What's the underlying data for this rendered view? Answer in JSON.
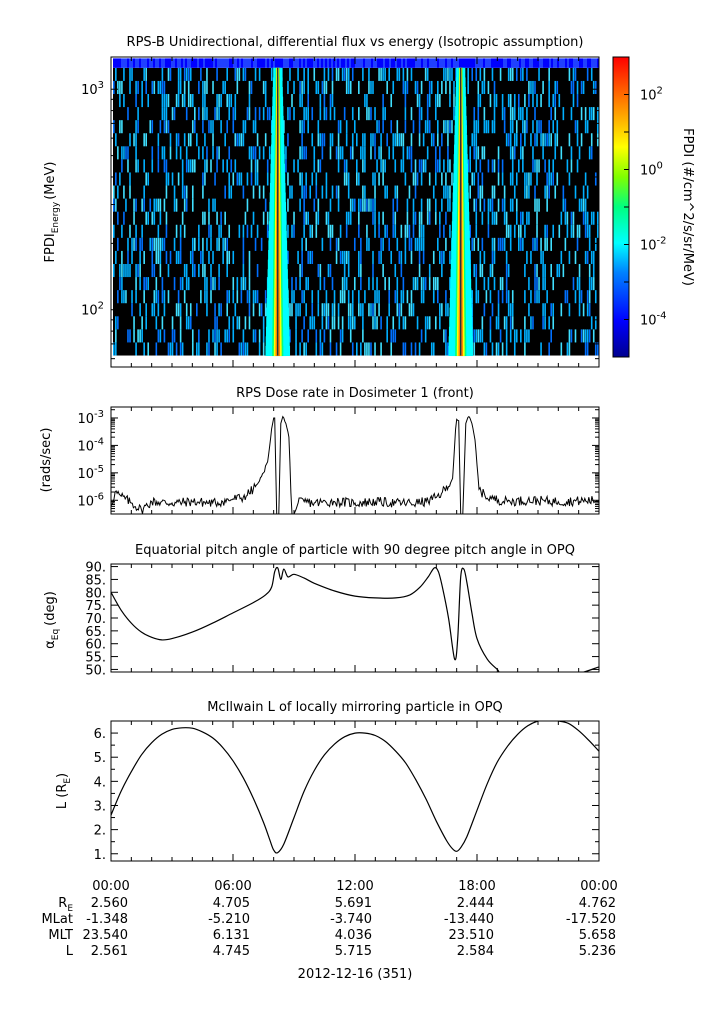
{
  "chart_data": [
    {
      "type": "heatmap",
      "title": "RPS-B  Unidirectional, differential flux vs energy (Isotropic assumption)",
      "ylabel": "FPDI",
      "ylabel_sub": "Energy",
      "ylabel_unit": "(MeV)",
      "yscale": "log",
      "ylim": [
        55,
        1400
      ],
      "yticks": [
        {
          "base": "10",
          "exp": "3",
          "value": 1000
        },
        {
          "base": "10",
          "exp": "2",
          "value": 100
        }
      ],
      "x_hours": [
        0,
        24
      ],
      "bright_bands_hours": [
        8.2,
        17.2
      ],
      "colorbar": {
        "label": "FPDI (#/cm^2/s/sr/MeV)",
        "scale": "log",
        "range_exp": [
          -5,
          3
        ],
        "ticks": [
          {
            "base": "10",
            "exp": "2",
            "value": 2
          },
          {
            "base": "10",
            "exp": "0",
            "value": 0
          },
          {
            "base": "10",
            "exp": "-2",
            "value": -2
          },
          {
            "base": "10",
            "exp": "-4",
            "value": -4
          }
        ],
        "colors": [
          "#00008f",
          "#0000ff",
          "#0080ff",
          "#00ffff",
          "#00ff80",
          "#80ff00",
          "#ffff00",
          "#ff8000",
          "#ff0000"
        ]
      }
    },
    {
      "type": "line",
      "title": "RPS  Dose rate in Dosimeter 1 (front)",
      "ylabel": "(rads/sec)",
      "yscale": "log",
      "ylim_exp": [
        -6.5,
        -2.6
      ],
      "yticks": [
        {
          "base": "10",
          "exp": "-3",
          "value": -3
        },
        {
          "base": "10",
          "exp": "-4",
          "value": -4
        },
        {
          "base": "10",
          "exp": "-5",
          "value": -5
        },
        {
          "base": "10",
          "exp": "-6",
          "value": -6
        }
      ],
      "series": [
        {
          "x": [
            0,
            0.2,
            0.5,
            1.0,
            1.5,
            2.0,
            3.0,
            4.0,
            5.0,
            5.5,
            6.0,
            6.5,
            7.0,
            7.3,
            7.5,
            7.7,
            7.9,
            8.0,
            8.05,
            8.15,
            8.25,
            8.35,
            8.45,
            8.6,
            8.75,
            8.9,
            9.0,
            9.2,
            9.5,
            10.0,
            11.0,
            12.0,
            13.0,
            14.0,
            15.0,
            15.5,
            16.0,
            16.3,
            16.6,
            16.8,
            16.95,
            17.0,
            17.1,
            17.2,
            17.3,
            17.45,
            17.6,
            17.75,
            17.9,
            18.1,
            18.4,
            18.8,
            19.5,
            20.5,
            22.0,
            24.0
          ],
          "y_log10": [
            -6.2,
            -5.7,
            -5.85,
            -6.1,
            -6.35,
            -6.05,
            -6.1,
            -6.05,
            -6.1,
            -6.05,
            -5.95,
            -5.9,
            -5.6,
            -5.3,
            -5.0,
            -4.6,
            -3.4,
            -3.0,
            -3.0,
            -6.5,
            -6.5,
            -3.2,
            -2.95,
            -3.2,
            -3.7,
            -6.5,
            -6.5,
            -6.1,
            -6.05,
            -6.1,
            -6.05,
            -6.1,
            -6.05,
            -6.1,
            -6.1,
            -6.05,
            -5.9,
            -5.7,
            -5.5,
            -5.2,
            -3.4,
            -3.05,
            -3.1,
            -6.5,
            -6.5,
            -3.2,
            -2.95,
            -3.2,
            -3.8,
            -5.6,
            -5.85,
            -5.95,
            -6.05,
            -6.0,
            -6.05,
            -6.0
          ]
        }
      ]
    },
    {
      "type": "line",
      "title": "Equatorial pitch angle of particle with 90 degree pitch angle in OPQ",
      "ylabel": "α",
      "ylabel_sub": "Eq",
      "ylabel_unit": "(deg)",
      "ylim": [
        49,
        91
      ],
      "yticks": [
        90,
        85,
        80,
        75,
        70,
        65,
        60,
        55,
        50
      ],
      "ytick_labels": [
        "90.",
        "85.",
        "80.",
        "75.",
        "70.",
        "65.",
        "60.",
        "55.",
        "50."
      ],
      "series": [
        {
          "x": [
            0,
            0.5,
            1,
            1.5,
            2,
            2.5,
            3,
            4,
            5,
            6,
            7,
            7.6,
            7.9,
            8.05,
            8.2,
            8.35,
            8.5,
            8.7,
            9.0,
            9.5,
            10.0,
            11.0,
            12.0,
            13.0,
            14.0,
            14.7,
            15.2,
            15.6,
            15.9,
            16.1,
            16.3,
            16.6,
            16.9,
            17.05,
            17.2,
            17.35,
            17.5,
            17.75,
            18.0,
            18.5,
            19.0,
            19.2,
            20,
            21,
            22,
            23,
            24
          ],
          "y": [
            80,
            73,
            68,
            64.5,
            62.5,
            61.5,
            62,
            64.5,
            68,
            72,
            76,
            79,
            82,
            88,
            89.5,
            85,
            89,
            86,
            87,
            85.5,
            83.5,
            80.5,
            78.5,
            77.8,
            77.8,
            79,
            82,
            86,
            89.5,
            88,
            82,
            70,
            54,
            62,
            86,
            89,
            84,
            72,
            62,
            54,
            50,
            48.5,
            48.5,
            48.5,
            48.5,
            48.5,
            51
          ]
        }
      ]
    },
    {
      "type": "line",
      "title": "McIlwain L of locally mirroring particle in OPQ",
      "ylabel": "L (R",
      "ylabel_sub": "E",
      "ylabel_unit": ")",
      "ylim": [
        0.7,
        6.5
      ],
      "yticks": [
        1,
        2,
        3,
        4,
        5,
        6
      ],
      "ytick_labels": [
        "1.",
        "2.",
        "3.",
        "4.",
        "5.",
        "6."
      ],
      "series": [
        {
          "x": [
            0,
            0.5,
            1,
            1.5,
            2,
            2.5,
            3,
            3.5,
            4,
            4.5,
            5,
            5.5,
            6,
            6.5,
            7,
            7.5,
            7.8,
            8.0,
            8.2,
            8.5,
            9,
            9.5,
            10,
            10.5,
            11,
            11.5,
            12,
            12.5,
            13,
            13.5,
            14,
            14.5,
            15,
            15.5,
            16,
            16.5,
            16.8,
            17.0,
            17.2,
            17.5,
            18,
            18.5,
            19,
            19.5,
            20,
            20.5,
            21,
            21.5,
            22,
            22.5,
            23,
            23.5,
            24
          ],
          "y": [
            2.6,
            3.6,
            4.4,
            5.1,
            5.6,
            5.95,
            6.15,
            6.22,
            6.2,
            6.05,
            5.8,
            5.4,
            4.85,
            4.15,
            3.3,
            2.3,
            1.6,
            1.15,
            1.05,
            1.4,
            2.5,
            3.6,
            4.45,
            5.1,
            5.55,
            5.85,
            6.0,
            6.0,
            5.9,
            5.65,
            5.25,
            4.75,
            4.05,
            3.25,
            2.35,
            1.55,
            1.2,
            1.1,
            1.25,
            1.7,
            2.8,
            3.9,
            4.8,
            5.45,
            5.95,
            6.3,
            6.5,
            6.55,
            6.5,
            6.4,
            6.1,
            5.7,
            5.25
          ]
        }
      ]
    }
  ],
  "time_axis": {
    "labels": [
      "00:00",
      "06:00",
      "12:00",
      "18:00",
      "00:00"
    ],
    "rows": [
      {
        "label": "R",
        "label_sub": "E",
        "values": [
          "2.560",
          "4.705",
          "5.691",
          "2.444",
          "4.762"
        ]
      },
      {
        "label": "MLat",
        "values": [
          "-1.348",
          "-5.210",
          "-3.740",
          "-13.440",
          "-17.520"
        ]
      },
      {
        "label": "MLT",
        "values": [
          "23.540",
          "6.131",
          "4.036",
          "23.510",
          "5.658"
        ]
      },
      {
        "label": "L",
        "values": [
          "2.561",
          "4.745",
          "5.715",
          "2.584",
          "5.236"
        ]
      }
    ],
    "date": "2012-12-16 (351)"
  }
}
